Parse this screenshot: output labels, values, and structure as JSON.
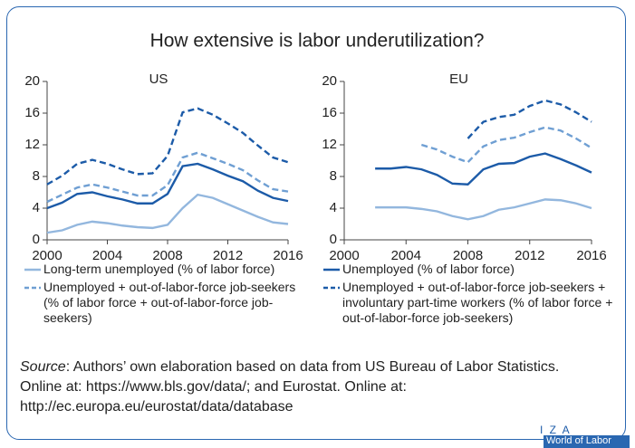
{
  "title": "How extensive is labor underutilization?",
  "chart_data": [
    {
      "type": "line",
      "title": "US",
      "x": [
        2000,
        2001,
        2002,
        2003,
        2004,
        2005,
        2006,
        2007,
        2008,
        2009,
        2010,
        2011,
        2012,
        2013,
        2014,
        2015,
        2016
      ],
      "xlim": [
        2000,
        2016
      ],
      "xticks": [
        2000,
        2004,
        2008,
        2012,
        2016
      ],
      "ylim": [
        0,
        20
      ],
      "yticks": [
        0,
        4,
        8,
        12,
        16,
        20
      ],
      "series": [
        {
          "name": "Long-term unemployed (% of labor force)",
          "color": "#93b7de",
          "dash": false,
          "values": [
            0.9,
            1.2,
            1.9,
            2.3,
            2.1,
            1.8,
            1.6,
            1.5,
            1.9,
            4.0,
            5.7,
            5.3,
            4.5,
            3.7,
            2.9,
            2.2,
            2.0
          ]
        },
        {
          "name": "Unemployed (% of labor force)",
          "color": "#1c5ba8",
          "dash": false,
          "values": [
            4.0,
            4.7,
            5.8,
            6.0,
            5.5,
            5.1,
            4.6,
            4.6,
            5.8,
            9.3,
            9.6,
            8.9,
            8.1,
            7.4,
            6.2,
            5.3,
            4.9
          ]
        },
        {
          "name": "Unemployed + out-of-labor-force job-seekers (% of labor force + out-of-labor-force job-seekers)",
          "color": "#6f9fd3",
          "dash": true,
          "values": [
            4.8,
            5.7,
            6.6,
            7.0,
            6.6,
            6.1,
            5.6,
            5.6,
            6.9,
            10.4,
            11.0,
            10.3,
            9.6,
            8.8,
            7.5,
            6.4,
            6.1
          ]
        },
        {
          "name": "Unemployed + out-of-labor-force job-seekers + involuntary part-time workers (% of labor force + out-of-labor-force job-seekers)",
          "color": "#1c5ba8",
          "dash": true,
          "values": [
            7.0,
            8.1,
            9.6,
            10.1,
            9.6,
            8.9,
            8.3,
            8.4,
            10.6,
            16.1,
            16.6,
            15.8,
            14.7,
            13.5,
            11.9,
            10.4,
            9.8
          ]
        }
      ]
    },
    {
      "type": "line",
      "title": "EU",
      "x": [
        2000,
        2001,
        2002,
        2003,
        2004,
        2005,
        2006,
        2007,
        2008,
        2009,
        2010,
        2011,
        2012,
        2013,
        2014,
        2015,
        2016
      ],
      "xlim": [
        2000,
        2016
      ],
      "xticks": [
        2000,
        2004,
        2008,
        2012,
        2016
      ],
      "ylim": [
        0,
        20
      ],
      "yticks": [
        0,
        4,
        8,
        12,
        16,
        20
      ],
      "series": [
        {
          "color": "#93b7de",
          "dash": false,
          "values": [
            null,
            null,
            4.1,
            4.1,
            4.1,
            3.9,
            3.6,
            3.0,
            2.6,
            3.0,
            3.8,
            4.1,
            4.6,
            5.1,
            5.0,
            4.6,
            4.0
          ]
        },
        {
          "color": "#1c5ba8",
          "dash": false,
          "values": [
            null,
            null,
            9.0,
            9.0,
            9.2,
            8.9,
            8.2,
            7.1,
            7.0,
            8.9,
            9.6,
            9.7,
            10.5,
            10.9,
            10.2,
            9.4,
            8.5
          ]
        },
        {
          "color": "#6f9fd3",
          "dash": true,
          "values": [
            null,
            null,
            null,
            null,
            null,
            12.0,
            11.4,
            10.5,
            9.8,
            11.8,
            12.6,
            12.9,
            13.6,
            14.2,
            13.8,
            12.8,
            11.6
          ]
        },
        {
          "color": "#1c5ba8",
          "dash": true,
          "values": [
            null,
            null,
            null,
            null,
            null,
            null,
            null,
            null,
            12.8,
            14.9,
            15.5,
            15.8,
            16.9,
            17.6,
            17.1,
            16.1,
            14.9
          ]
        }
      ]
    }
  ],
  "source_label": "Source",
  "source_text": ": Authors’ own elaboration based on data from US Bureau of Labor Statistics. Online at: https://www.bls.gov/data/; and Eurostat. Online at: http://ec.europa.eu/eurostat/data/database",
  "logo": {
    "mark": "I Z A",
    "text": "World of Labor"
  }
}
